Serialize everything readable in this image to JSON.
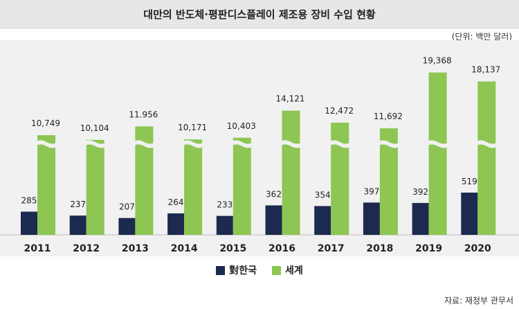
{
  "title": "대만의 반도체·평판디스플레이 제조용 장비 수입 현황",
  "unit": "(단위: 백만 달러)",
  "source": "자료: 재정부 관무서",
  "colors": {
    "korea": "#1d2a4f",
    "world": "#8dc653",
    "background": "#f1f1f1"
  },
  "chart_data": {
    "type": "bar",
    "title": "대만의 반도체·평판디스플레이 제조용 장비 수입 현황",
    "categories": [
      "2011",
      "2012",
      "2013",
      "2014",
      "2015",
      "2016",
      "2017",
      "2018",
      "2019",
      "2020"
    ],
    "series": [
      {
        "name": "對한국",
        "values": [
          285,
          237,
          207,
          264,
          233,
          362,
          354,
          397,
          392,
          519
        ],
        "labels": [
          "285",
          "237",
          "207",
          "264",
          "233",
          "362",
          "354",
          "397",
          "392",
          "519"
        ]
      },
      {
        "name": "세계",
        "values": [
          10749,
          10104,
          11956,
          10171,
          10403,
          14121,
          12472,
          11692,
          19368,
          18137
        ],
        "labels": [
          "10,749",
          "10,104",
          "11.956",
          "10,171",
          "10,403",
          "14,121",
          "12,472",
          "11,692",
          "19,368",
          "18,137"
        ]
      }
    ],
    "axis_break": true,
    "legend": "bottom-center"
  }
}
